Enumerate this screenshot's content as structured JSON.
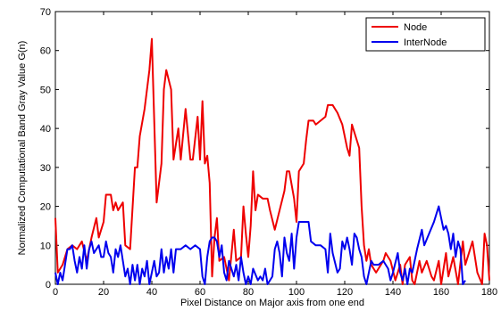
{
  "chart_data": {
    "type": "line",
    "xlabel": "Pixel Distance on Major axis from one end",
    "ylabel": "Normalized Computational Band Gray Value G(n)",
    "xlim": [
      0,
      180
    ],
    "ylim": [
      0,
      70
    ],
    "xticks": [
      0,
      20,
      40,
      60,
      80,
      100,
      120,
      140,
      160,
      180
    ],
    "yticks": [
      0,
      10,
      20,
      30,
      40,
      50,
      60,
      70
    ],
    "legend": "top-right",
    "series": [
      {
        "name": "Node",
        "color": "#ee0000",
        "x": [
          0,
          1,
          3,
          5,
          7,
          9,
          11,
          13,
          15,
          17,
          18,
          20,
          21,
          23,
          24,
          25,
          26,
          28,
          29,
          31,
          33,
          34,
          35,
          37,
          39,
          40,
          42,
          44,
          45,
          46,
          48,
          49,
          51,
          52,
          54,
          56,
          57,
          59,
          60,
          61,
          62,
          63,
          64,
          65,
          66,
          67,
          68,
          70,
          72,
          74,
          75,
          77,
          78,
          79,
          80,
          81,
          82,
          83,
          84,
          86,
          88,
          89,
          91,
          93,
          95,
          96,
          97,
          99,
          100,
          101,
          103,
          104,
          105,
          107,
          108,
          110,
          112,
          113,
          115,
          117,
          119,
          121,
          122,
          123,
          126,
          127,
          128,
          129,
          130,
          131,
          133,
          136,
          137,
          139,
          141,
          143,
          144,
          145,
          147,
          148,
          149,
          151,
          152,
          154,
          156,
          157,
          159,
          160,
          162,
          163,
          165,
          167,
          169,
          170,
          172,
          173,
          175,
          177,
          178,
          179,
          180
        ],
        "values": [
          17,
          3,
          5,
          9,
          10,
          9,
          11,
          6,
          12,
          17,
          12,
          16,
          23,
          23,
          19,
          21,
          19,
          21,
          10,
          9,
          30,
          30,
          38,
          45,
          55,
          63,
          21,
          31,
          50,
          55,
          50,
          32,
          40,
          32,
          45,
          32,
          32,
          43,
          32,
          47,
          31,
          33,
          26,
          2,
          12,
          17,
          6,
          7,
          1,
          14,
          6,
          7,
          20,
          13,
          7,
          15,
          29,
          19,
          23,
          22,
          22,
          19,
          14,
          19,
          24,
          29,
          29,
          22,
          16,
          29,
          31,
          37,
          42,
          42,
          41,
          42,
          43,
          46,
          46,
          44,
          41,
          35,
          33,
          41,
          35,
          20,
          10,
          6,
          9,
          5,
          3,
          6,
          8,
          6,
          1,
          5,
          0,
          5,
          7,
          1,
          0,
          6,
          3,
          6,
          2,
          1,
          6,
          0,
          8,
          2,
          7,
          0,
          11,
          5,
          9,
          11,
          3,
          0,
          13,
          10,
          1
        ]
      },
      {
        "name": "InterNode",
        "color": "#0000ee",
        "x": [
          0,
          1,
          2,
          3,
          4,
          5,
          6,
          7,
          8,
          9,
          10,
          11,
          12,
          13,
          14,
          15,
          16,
          17,
          18,
          19,
          20,
          21,
          22,
          23,
          24,
          25,
          26,
          27,
          28,
          29,
          30,
          31,
          32,
          33,
          34,
          35,
          36,
          37,
          38,
          39,
          40,
          41,
          42,
          43,
          44,
          45,
          46,
          47,
          48,
          49,
          50,
          52,
          54,
          56,
          58,
          60,
          61,
          62,
          63,
          64,
          65,
          66,
          67,
          68,
          69,
          70,
          71,
          72,
          73,
          74,
          75,
          76,
          77,
          78,
          79,
          80,
          81,
          82,
          84,
          85,
          86,
          87,
          88,
          89,
          90,
          91,
          92,
          93,
          94,
          95,
          96,
          97,
          98,
          99,
          100,
          101,
          103,
          105,
          106,
          108,
          110,
          112,
          113,
          114,
          115,
          117,
          118,
          119,
          120,
          121,
          122,
          123,
          124,
          125,
          126,
          127,
          128,
          129,
          131,
          132,
          134,
          136,
          138,
          139,
          140,
          142,
          143,
          144,
          145,
          146,
          147,
          148,
          150,
          152,
          153,
          155,
          157,
          158,
          159,
          160,
          161,
          162,
          163,
          164,
          165,
          166,
          167,
          168,
          169,
          170
        ],
        "values": [
          3,
          0,
          3,
          1,
          5,
          9,
          9,
          10,
          6,
          3,
          7,
          4,
          10,
          4,
          9,
          11,
          8,
          9,
          10,
          7,
          7,
          11,
          8,
          7,
          3,
          9,
          7,
          10,
          6,
          2,
          4,
          0,
          5,
          1,
          5,
          0,
          4,
          2,
          6,
          0,
          3,
          6,
          2,
          3,
          9,
          3,
          7,
          4,
          9,
          3,
          9,
          9,
          10,
          9,
          10,
          9,
          2,
          0,
          7,
          11,
          12,
          12,
          11,
          7,
          10,
          3,
          1,
          6,
          4,
          2,
          5,
          1,
          7,
          3,
          0,
          2,
          0,
          4,
          1,
          2,
          1,
          4,
          0,
          1,
          2,
          9,
          11,
          8,
          2,
          12,
          8,
          6,
          13,
          4,
          12,
          16,
          16,
          16,
          11,
          10,
          10,
          9,
          3,
          13,
          8,
          3,
          4,
          11,
          9,
          12,
          9,
          5,
          13,
          12,
          9,
          7,
          2,
          0,
          6,
          5,
          5,
          6,
          4,
          1,
          3,
          8,
          3,
          1,
          4,
          0,
          4,
          3,
          9,
          14,
          10,
          13,
          16,
          18,
          20,
          17,
          14,
          15,
          13,
          9,
          13,
          7,
          11,
          9,
          0,
          1
        ]
      }
    ]
  }
}
